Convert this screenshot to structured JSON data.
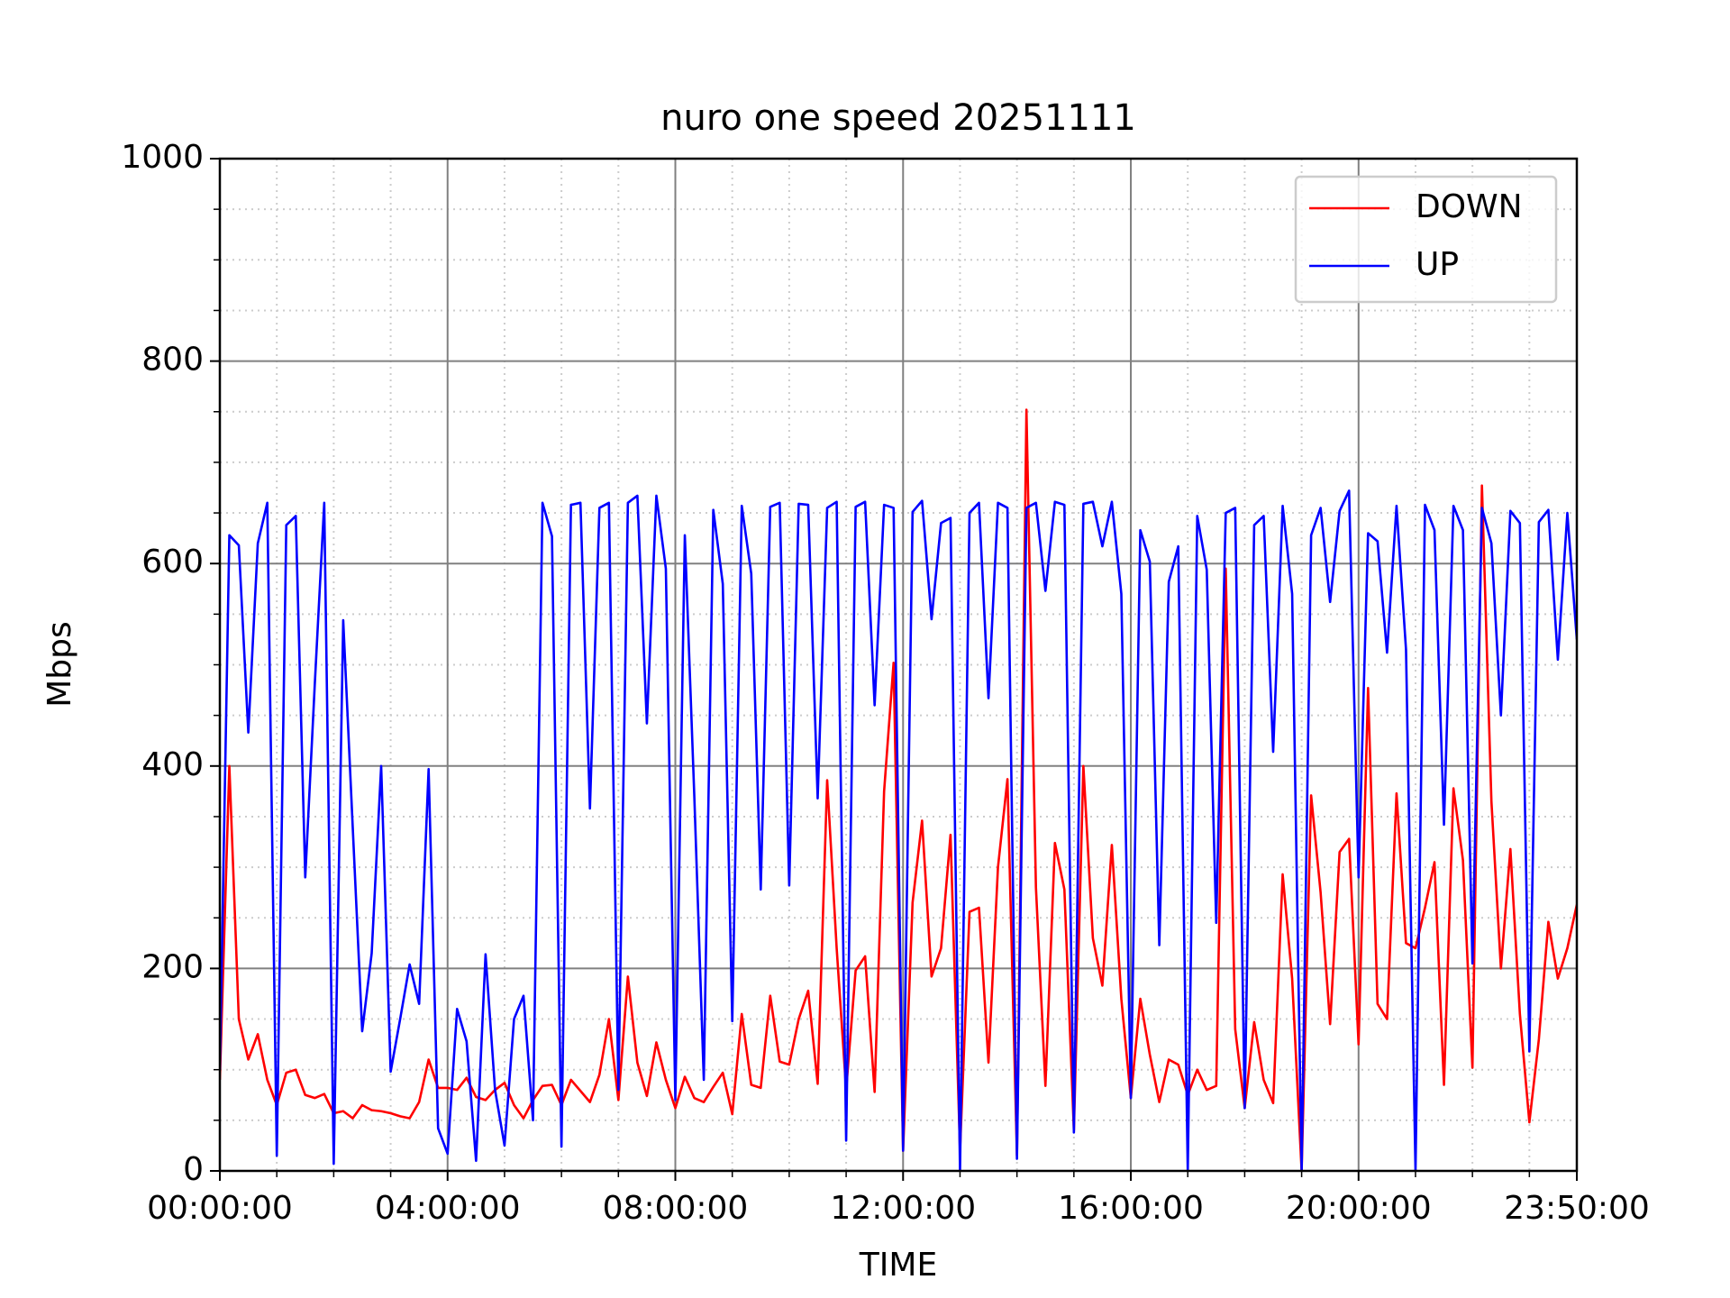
{
  "chart_data": {
    "type": "line",
    "title": "nuro one speed 20251111",
    "x_label": "TIME",
    "y_label": "Mbps",
    "x": [
      "00:00:00",
      "00:10:00",
      "00:20:00",
      "00:30:00",
      "00:40:00",
      "00:50:00",
      "01:00:00",
      "01:10:00",
      "01:20:00",
      "01:30:00",
      "01:40:00",
      "01:50:00",
      "02:00:00",
      "02:10:00",
      "02:20:00",
      "02:30:00",
      "02:40:00",
      "02:50:00",
      "03:00:00",
      "03:10:00",
      "03:20:00",
      "03:30:00",
      "03:40:00",
      "03:50:00",
      "04:00:00",
      "04:10:00",
      "04:20:00",
      "04:30:00",
      "04:40:00",
      "04:50:00",
      "05:00:00",
      "05:10:00",
      "05:20:00",
      "05:30:00",
      "05:40:00",
      "05:50:00",
      "06:00:00",
      "06:10:00",
      "06:20:00",
      "06:30:00",
      "06:40:00",
      "06:50:00",
      "07:00:00",
      "07:10:00",
      "07:20:00",
      "07:30:00",
      "07:40:00",
      "07:50:00",
      "08:00:00",
      "08:10:00",
      "08:20:00",
      "08:30:00",
      "08:40:00",
      "08:50:00",
      "09:00:00",
      "09:10:00",
      "09:20:00",
      "09:30:00",
      "09:40:00",
      "09:50:00",
      "10:00:00",
      "10:10:00",
      "10:20:00",
      "10:30:00",
      "10:40:00",
      "10:50:00",
      "11:00:00",
      "11:10:00",
      "11:20:00",
      "11:30:00",
      "11:40:00",
      "11:50:00",
      "12:00:00",
      "12:10:00",
      "12:20:00",
      "12:30:00",
      "12:40:00",
      "12:50:00",
      "13:00:00",
      "13:10:00",
      "13:20:00",
      "13:30:00",
      "13:40:00",
      "13:50:00",
      "14:00:00",
      "14:10:00",
      "14:20:00",
      "14:30:00",
      "14:40:00",
      "14:50:00",
      "15:00:00",
      "15:10:00",
      "15:20:00",
      "15:30:00",
      "15:40:00",
      "15:50:00",
      "16:00:00",
      "16:10:00",
      "16:20:00",
      "16:30:00",
      "16:40:00",
      "16:50:00",
      "17:00:00",
      "17:10:00",
      "17:20:00",
      "17:30:00",
      "17:40:00",
      "17:50:00",
      "18:00:00",
      "18:10:00",
      "18:20:00",
      "18:30:00",
      "18:40:00",
      "18:50:00",
      "19:00:00",
      "19:10:00",
      "19:20:00",
      "19:30:00",
      "19:40:00",
      "19:50:00",
      "20:00:00",
      "20:10:00",
      "20:20:00",
      "20:30:00",
      "20:40:00",
      "20:50:00",
      "21:00:00",
      "21:10:00",
      "21:20:00",
      "21:30:00",
      "21:40:00",
      "21:50:00",
      "22:00:00",
      "22:10:00",
      "22:20:00",
      "22:30:00",
      "22:40:00",
      "22:50:00",
      "23:00:00",
      "23:10:00",
      "23:20:00",
      "23:30:00",
      "23:40:00",
      "23:50:00"
    ],
    "series": [
      {
        "name": "DOWN",
        "color": "#ff0000",
        "values": [
          90,
          400,
          150,
          110,
          135,
          90,
          65,
          97,
          100,
          75,
          72,
          76,
          57,
          59,
          52,
          65,
          60,
          59,
          57,
          54,
          52,
          68,
          110,
          82,
          82,
          80,
          92,
          73,
          70,
          80,
          87,
          65,
          52,
          70,
          84,
          85,
          65,
          90,
          79,
          68,
          95,
          150,
          70,
          192,
          107,
          74,
          127,
          90,
          62,
          93,
          72,
          68,
          83,
          97,
          56,
          155,
          85,
          82,
          173,
          108,
          105,
          150,
          178,
          86,
          386,
          220,
          80,
          198,
          212,
          78,
          375,
          502,
          20,
          265,
          346,
          192,
          220,
          332,
          20,
          256,
          260,
          107,
          300,
          387,
          15,
          752,
          280,
          84,
          324,
          278,
          40,
          400,
          230,
          183,
          322,
          170,
          72,
          170,
          115,
          68,
          110,
          105,
          75,
          100,
          80,
          84,
          595,
          140,
          62,
          147,
          90,
          67,
          293,
          190,
          0,
          371,
          275,
          145,
          315,
          328,
          125,
          477,
          165,
          150,
          373,
          225,
          220,
          260,
          305,
          85,
          378,
          307,
          102,
          677,
          365,
          200,
          318,
          155,
          48,
          130,
          246,
          190,
          220,
          263
        ]
      },
      {
        "name": "UP",
        "color": "#0000ff",
        "values": [
          100,
          628,
          618,
          433,
          620,
          660,
          15,
          638,
          647,
          290,
          480,
          660,
          7,
          544,
          340,
          138,
          215,
          400,
          98,
          150,
          204,
          165,
          397,
          42,
          17,
          160,
          128,
          10,
          214,
          80,
          25,
          150,
          173,
          50,
          660,
          627,
          24,
          658,
          660,
          358,
          655,
          660,
          80,
          660,
          667,
          442,
          667,
          595,
          70,
          628,
          370,
          90,
          653,
          580,
          148,
          657,
          590,
          278,
          656,
          660,
          282,
          659,
          658,
          368,
          655,
          661,
          30,
          656,
          661,
          460,
          658,
          655,
          20,
          651,
          662,
          545,
          640,
          645,
          0,
          650,
          660,
          467,
          660,
          655,
          12,
          655,
          660,
          573,
          661,
          658,
          38,
          659,
          661,
          617,
          661,
          570,
          72,
          633,
          602,
          223,
          582,
          617,
          0,
          647,
          594,
          245,
          650,
          655,
          62,
          638,
          647,
          414,
          657,
          570,
          0,
          628,
          655,
          562,
          652,
          672,
          290,
          630,
          622,
          512,
          657,
          515,
          0,
          658,
          633,
          342,
          657,
          633,
          205,
          655,
          620,
          450,
          652,
          640,
          118,
          641,
          653,
          505,
          650,
          525
        ]
      }
    ],
    "xlim": [
      "00:00:00",
      "23:50:00"
    ],
    "xticks": [
      "00:00:00",
      "04:00:00",
      "08:00:00",
      "12:00:00",
      "16:00:00",
      "20:00:00",
      "23:50:00"
    ],
    "ylim": [
      0,
      1000
    ],
    "yticks": [
      0,
      200,
      400,
      600,
      800,
      1000
    ],
    "grid": true,
    "minor_grid": true,
    "legend": "upper right"
  }
}
